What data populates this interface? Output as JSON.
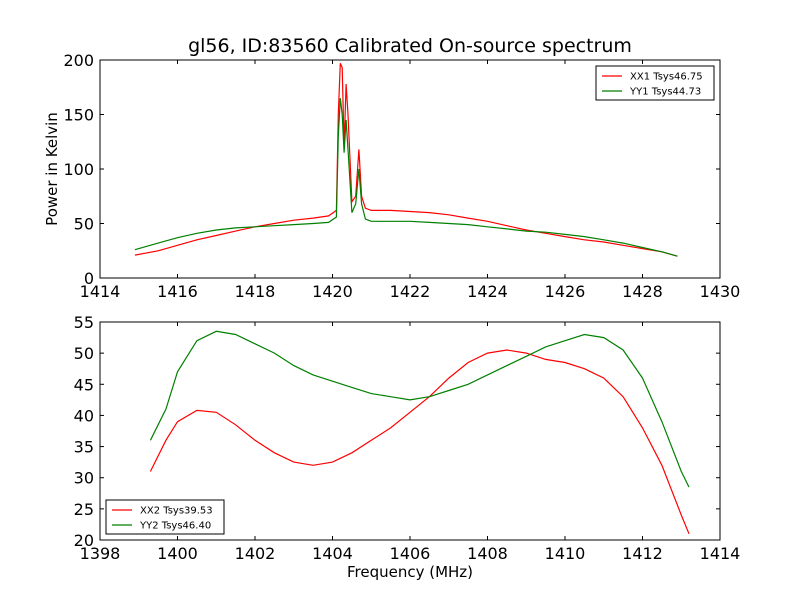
{
  "figure": {
    "title": "gl56, ID:83560 Calibrated On-source spectrum"
  },
  "chart_data": [
    {
      "type": "line",
      "title": "gl56, ID:83560 Calibrated On-source spectrum",
      "xlabel": "",
      "ylabel": "Power in Kelvin",
      "xlim": [
        1414,
        1430
      ],
      "ylim": [
        0,
        200
      ],
      "xticks": [
        1414,
        1416,
        1418,
        1420,
        1422,
        1424,
        1426,
        1428,
        1430
      ],
      "yticks": [
        0,
        50,
        100,
        150,
        200
      ],
      "grid": false,
      "legend_position": "top-right",
      "series": [
        {
          "name": "XX1 Tsys46.75",
          "color": "#ff0000",
          "points": [
            [
              1414.9,
              21
            ],
            [
              1415.5,
              25
            ],
            [
              1416,
              30
            ],
            [
              1416.5,
              35
            ],
            [
              1417,
              39
            ],
            [
              1417.5,
              43
            ],
            [
              1418,
              47
            ],
            [
              1418.5,
              50
            ],
            [
              1419,
              53
            ],
            [
              1419.5,
              55
            ],
            [
              1419.9,
              57
            ],
            [
              1420.1,
              62
            ],
            [
              1420.15,
              150
            ],
            [
              1420.2,
              197
            ],
            [
              1420.25,
              193
            ],
            [
              1420.3,
              120
            ],
            [
              1420.35,
              178
            ],
            [
              1420.4,
              150
            ],
            [
              1420.5,
              70
            ],
            [
              1420.6,
              75
            ],
            [
              1420.68,
              118
            ],
            [
              1420.75,
              75
            ],
            [
              1420.85,
              64
            ],
            [
              1421,
              62
            ],
            [
              1421.5,
              62
            ],
            [
              1422,
              61
            ],
            [
              1422.5,
              60
            ],
            [
              1423,
              58
            ],
            [
              1423.5,
              55
            ],
            [
              1424,
              52
            ],
            [
              1424.5,
              48
            ],
            [
              1425,
              44
            ],
            [
              1425.5,
              41
            ],
            [
              1426,
              38
            ],
            [
              1426.5,
              35
            ],
            [
              1427,
              33
            ],
            [
              1427.5,
              30
            ],
            [
              1428,
              27
            ],
            [
              1428.5,
              24
            ],
            [
              1428.9,
              20
            ]
          ]
        },
        {
          "name": "YY1 Tsys44.73",
          "color": "#008000",
          "points": [
            [
              1414.9,
              26
            ],
            [
              1415.5,
              32
            ],
            [
              1416,
              37
            ],
            [
              1416.5,
              41
            ],
            [
              1417,
              44
            ],
            [
              1417.5,
              46
            ],
            [
              1418,
              47
            ],
            [
              1418.5,
              48
            ],
            [
              1419,
              49
            ],
            [
              1419.5,
              50
            ],
            [
              1419.9,
              51
            ],
            [
              1420.1,
              56
            ],
            [
              1420.15,
              130
            ],
            [
              1420.2,
              165
            ],
            [
              1420.25,
              150
            ],
            [
              1420.3,
              115
            ],
            [
              1420.35,
              145
            ],
            [
              1420.4,
              118
            ],
            [
              1420.5,
              60
            ],
            [
              1420.6,
              68
            ],
            [
              1420.68,
              100
            ],
            [
              1420.75,
              68
            ],
            [
              1420.85,
              54
            ],
            [
              1421,
              52
            ],
            [
              1421.5,
              52
            ],
            [
              1422,
              52
            ],
            [
              1422.5,
              51
            ],
            [
              1423,
              50
            ],
            [
              1423.5,
              49
            ],
            [
              1424,
              47
            ],
            [
              1424.5,
              45
            ],
            [
              1425,
              43
            ],
            [
              1425.5,
              42
            ],
            [
              1426,
              40
            ],
            [
              1426.5,
              38
            ],
            [
              1427,
              35
            ],
            [
              1427.5,
              32
            ],
            [
              1428,
              28
            ],
            [
              1428.5,
              24
            ],
            [
              1428.9,
              20
            ]
          ]
        }
      ]
    },
    {
      "type": "line",
      "title": "",
      "xlabel": "Frequency (MHz)",
      "ylabel": "",
      "xlim": [
        1398,
        1414
      ],
      "ylim": [
        20,
        55
      ],
      "xticks": [
        1398,
        1400,
        1402,
        1404,
        1406,
        1408,
        1410,
        1412,
        1414
      ],
      "yticks": [
        20,
        25,
        30,
        35,
        40,
        45,
        50,
        55
      ],
      "grid": false,
      "legend_position": "bottom-left",
      "series": [
        {
          "name": "XX2 Tsys39.53",
          "color": "#ff0000",
          "points": [
            [
              1399.3,
              31
            ],
            [
              1399.7,
              36
            ],
            [
              1400,
              39
            ],
            [
              1400.5,
              40.8
            ],
            [
              1401,
              40.5
            ],
            [
              1401.5,
              38.5
            ],
            [
              1402,
              36
            ],
            [
              1402.5,
              34
            ],
            [
              1403,
              32.5
            ],
            [
              1403.5,
              32
            ],
            [
              1404,
              32.5
            ],
            [
              1404.5,
              34
            ],
            [
              1405,
              36
            ],
            [
              1405.5,
              38
            ],
            [
              1406,
              40.5
            ],
            [
              1406.5,
              43
            ],
            [
              1407,
              46
            ],
            [
              1407.5,
              48.5
            ],
            [
              1408,
              50
            ],
            [
              1408.5,
              50.5
            ],
            [
              1409,
              50
            ],
            [
              1409.5,
              49
            ],
            [
              1410,
              48.5
            ],
            [
              1410.5,
              47.5
            ],
            [
              1411,
              46
            ],
            [
              1411.5,
              43
            ],
            [
              1412,
              38
            ],
            [
              1412.5,
              32
            ],
            [
              1413,
              24
            ],
            [
              1413.2,
              21
            ]
          ]
        },
        {
          "name": "YY2 Tsys46.40",
          "color": "#008000",
          "points": [
            [
              1399.3,
              36
            ],
            [
              1399.7,
              41
            ],
            [
              1400,
              47
            ],
            [
              1400.5,
              52
            ],
            [
              1401,
              53.5
            ],
            [
              1401.5,
              53
            ],
            [
              1402,
              51.5
            ],
            [
              1402.5,
              50
            ],
            [
              1403,
              48
            ],
            [
              1403.5,
              46.5
            ],
            [
              1404,
              45.5
            ],
            [
              1404.5,
              44.5
            ],
            [
              1405,
              43.5
            ],
            [
              1405.5,
              43
            ],
            [
              1406,
              42.5
            ],
            [
              1406.5,
              43
            ],
            [
              1407,
              44
            ],
            [
              1407.5,
              45
            ],
            [
              1408,
              46.5
            ],
            [
              1408.5,
              48
            ],
            [
              1409,
              49.5
            ],
            [
              1409.5,
              51
            ],
            [
              1410,
              52
            ],
            [
              1410.5,
              53
            ],
            [
              1411,
              52.5
            ],
            [
              1411.5,
              50.5
            ],
            [
              1412,
              46
            ],
            [
              1412.5,
              39
            ],
            [
              1413,
              31
            ],
            [
              1413.2,
              28.5
            ]
          ]
        }
      ]
    }
  ]
}
